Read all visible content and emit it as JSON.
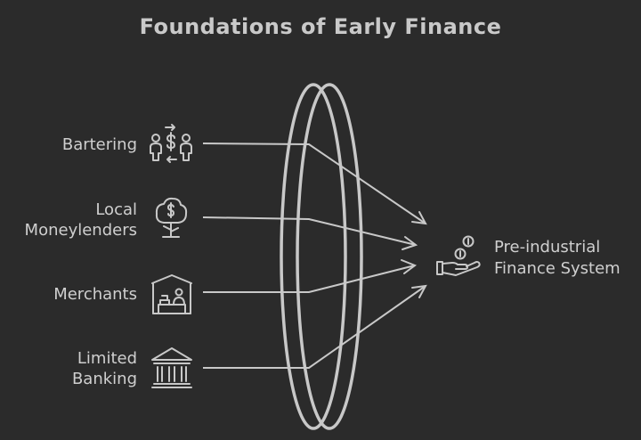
{
  "title": "Foundations of Early Finance",
  "inputs": [
    {
      "lines": [
        "Bartering"
      ],
      "icon": "barter-exchange-icon"
    },
    {
      "lines": [
        "Local",
        "Moneylenders"
      ],
      "icon": "money-tree-icon"
    },
    {
      "lines": [
        "Merchants"
      ],
      "icon": "market-stall-icon"
    },
    {
      "lines": [
        "Limited",
        "Banking"
      ],
      "icon": "bank-building-icon"
    }
  ],
  "output": {
    "lines": [
      "Pre-industrial",
      "Finance System"
    ],
    "icon": "hand-coins-icon"
  },
  "colors": {
    "background": "#2b2b2b",
    "stroke": "#c8c8c8",
    "text": "#cfcfcf"
  }
}
